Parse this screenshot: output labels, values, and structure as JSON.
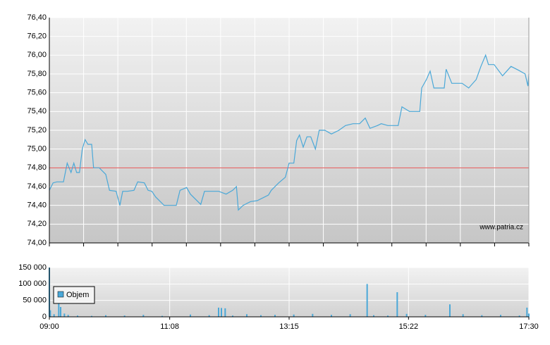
{
  "chart_data": [
    {
      "type": "line",
      "color": "#4aa8d8",
      "xlim": [
        "09:00",
        "17:30"
      ],
      "ylim": [
        74.0,
        76.4
      ],
      "yticks": [
        {
          "value": 74.0,
          "label": "74,00"
        },
        {
          "value": 74.2,
          "label": "74,20"
        },
        {
          "value": 74.4,
          "label": "74,40"
        },
        {
          "value": 74.6,
          "label": "74,60"
        },
        {
          "value": 74.8,
          "label": "74,80"
        },
        {
          "value": 75.0,
          "label": "75,00"
        },
        {
          "value": 75.2,
          "label": "75,20"
        },
        {
          "value": 75.4,
          "label": "75,40"
        },
        {
          "value": 75.6,
          "label": "75,60"
        },
        {
          "value": 75.8,
          "label": "75,80"
        },
        {
          "value": 76.0,
          "label": "76,00"
        },
        {
          "value": 76.2,
          "label": "76,20"
        },
        {
          "value": 76.4,
          "label": "76,40"
        }
      ],
      "grid": true,
      "reference_line": 74.8,
      "reference_color": "#e05050",
      "watermark": "www.patria.cz",
      "x": [
        "09:00",
        "09:04",
        "09:08",
        "09:15",
        "09:19",
        "09:23",
        "09:26",
        "09:29",
        "09:32",
        "09:35",
        "09:38",
        "09:41",
        "09:45",
        "09:47",
        "09:53",
        "10:00",
        "10:04",
        "10:11",
        "10:15",
        "10:18",
        "10:23",
        "10:30",
        "10:34",
        "10:41",
        "10:45",
        "10:49",
        "10:53",
        "11:02",
        "11:15",
        "11:19",
        "11:26",
        "11:30",
        "11:41",
        "11:45",
        "12:00",
        "12:08",
        "12:15",
        "12:19",
        "12:21",
        "12:26",
        "12:34",
        "12:41",
        "12:53",
        "12:56",
        "13:04",
        "13:11",
        "13:15",
        "13:20",
        "13:23",
        "13:26",
        "13:30",
        "13:34",
        "13:38",
        "13:43",
        "13:47",
        "13:53",
        "14:00",
        "14:08",
        "14:15",
        "14:23",
        "14:30",
        "14:36",
        "14:41",
        "14:49",
        "14:53",
        "15:00",
        "15:11",
        "15:15",
        "15:23",
        "15:34",
        "15:36",
        "15:41",
        "15:45",
        "15:49",
        "16:00",
        "16:02",
        "16:08",
        "16:19",
        "16:26",
        "16:34",
        "16:39",
        "16:44",
        "16:47",
        "16:53",
        "17:02",
        "17:11",
        "17:19",
        "17:26",
        "17:29",
        "17:30"
      ],
      "values": [
        74.56,
        74.64,
        74.65,
        74.65,
        74.85,
        74.75,
        74.85,
        74.75,
        74.75,
        75.0,
        75.1,
        75.05,
        75.05,
        74.8,
        74.8,
        74.73,
        74.56,
        74.55,
        74.4,
        74.55,
        74.55,
        74.56,
        74.65,
        74.64,
        74.56,
        74.55,
        74.49,
        74.4,
        74.4,
        74.56,
        74.59,
        74.52,
        74.41,
        74.55,
        74.55,
        74.52,
        74.56,
        74.6,
        74.35,
        74.4,
        74.44,
        74.45,
        74.51,
        74.56,
        74.64,
        74.7,
        74.85,
        74.85,
        75.09,
        75.15,
        75.02,
        75.13,
        75.13,
        75.0,
        75.2,
        75.2,
        75.16,
        75.2,
        75.25,
        75.27,
        75.27,
        75.33,
        75.22,
        75.25,
        75.27,
        75.25,
        75.25,
        75.45,
        75.4,
        75.4,
        75.65,
        75.74,
        75.83,
        75.65,
        75.65,
        75.85,
        75.7,
        75.7,
        75.65,
        75.74,
        75.88,
        76.0,
        75.9,
        75.9,
        75.78,
        75.88,
        75.84,
        75.8,
        75.67,
        75.8
      ]
    },
    {
      "type": "bar",
      "color": "#4aa8d8",
      "xlim": [
        "09:00",
        "17:30"
      ],
      "xticks": [
        "09:00",
        "11:08",
        "13:15",
        "15:22",
        "17:30"
      ],
      "ylim": [
        0,
        150000
      ],
      "yticks": [
        0,
        {
          "value": 50000,
          "label": "50 000"
        },
        {
          "value": 100000,
          "label": "100 000"
        },
        {
          "value": 150000,
          "label": "150 000"
        }
      ],
      "grid": true,
      "legend": "Objem",
      "x": [
        "09:00",
        "09:01",
        "09:05",
        "09:10",
        "09:12",
        "09:16",
        "09:20",
        "09:30",
        "09:45",
        "10:00",
        "10:20",
        "10:40",
        "11:00",
        "11:30",
        "11:50",
        "12:00",
        "12:03",
        "12:07",
        "12:15",
        "12:30",
        "12:45",
        "13:00",
        "13:20",
        "13:40",
        "14:00",
        "14:20",
        "14:38",
        "14:45",
        "15:00",
        "15:10",
        "15:20",
        "15:40",
        "16:06",
        "16:20",
        "16:40",
        "17:00",
        "17:20",
        "17:28",
        "17:30"
      ],
      "values": [
        150000,
        20000,
        8000,
        45000,
        30000,
        10000,
        6000,
        4000,
        3000,
        5000,
        4000,
        6000,
        3000,
        7000,
        5000,
        28000,
        27000,
        26000,
        4000,
        8000,
        5000,
        6000,
        7000,
        9000,
        6000,
        8000,
        100000,
        5000,
        4000,
        75000,
        9000,
        6000,
        38000,
        8000,
        5000,
        6000,
        4000,
        28000,
        10000
      ]
    }
  ]
}
